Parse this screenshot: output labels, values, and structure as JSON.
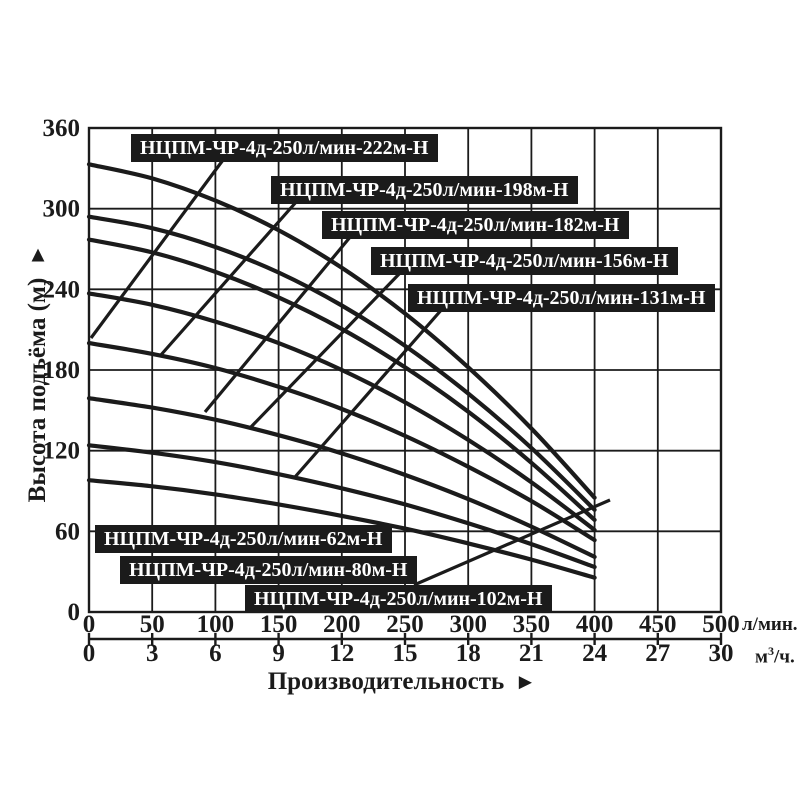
{
  "chart_data": {
    "type": "line",
    "x_label": "Производительность",
    "arrow_right": "►",
    "arrow_up": "▲",
    "y_axis": {
      "label": "Высота подъёма (м)",
      "ticks": [
        0,
        60,
        120,
        180,
        240,
        300,
        360
      ],
      "min": 0,
      "max": 360,
      "grid": true
    },
    "x_axis_primary": {
      "unit": "л/мин.",
      "ticks": [
        0,
        50,
        100,
        150,
        200,
        250,
        300,
        350,
        400,
        450,
        500
      ],
      "min": 0,
      "max": 500,
      "grid": true
    },
    "x_axis_secondary": {
      "unit_pre": "м",
      "unit_sup": "3",
      "unit_post": "/ч.",
      "ticks": [
        0,
        3,
        6,
        9,
        12,
        15,
        18,
        21,
        24,
        27,
        30
      ],
      "min": 0,
      "max": 30
    },
    "flow_samples_lmin": [
      0,
      50,
      100,
      150,
      200,
      250,
      300,
      350,
      400
    ],
    "series": [
      {
        "name": "НЦПМ-ЧР-4д-250л/мин-222м-Н",
        "rated_head_m": 222,
        "values": [
          333,
          322.5,
          306,
          284,
          256,
          222,
          182,
          136.5,
          85
        ]
      },
      {
        "name": "НЦПМ-ЧР-4д-250л/мин-198м-Н",
        "rated_head_m": 198,
        "values": [
          294,
          285.5,
          271.5,
          252.5,
          228,
          198,
          162.5,
          122,
          76
        ]
      },
      {
        "name": "НЦПМ-ЧР-4д-250л/мин-182м-Н",
        "rated_head_m": 182,
        "values": [
          277,
          267.5,
          253,
          234,
          210.5,
          182,
          149,
          111,
          68.5
        ]
      },
      {
        "name": "НЦПМ-ЧР-4д-250л/мин-156м-Н",
        "rated_head_m": 156,
        "values": [
          237,
          228.5,
          216,
          200,
          180,
          156,
          128,
          96.5,
          61
        ]
      },
      {
        "name": "НЦПМ-ЧР-4д-250л/мин-131м-Н",
        "rated_head_m": 131,
        "values": [
          200,
          192,
          181.5,
          167.5,
          151,
          131,
          108,
          82.5,
          53.5
        ]
      },
      {
        "name": "НЦПМ-ЧР-4д-250л/мин-102м-Н",
        "rated_head_m": 102,
        "values": [
          159,
          152,
          143,
          131.5,
          118,
          102,
          84,
          63.5,
          41
        ]
      },
      {
        "name": "НЦПМ-ЧР-4д-250л/мин-80м-Н",
        "rated_head_m": 80,
        "values": [
          124,
          118.5,
          111.5,
          102.5,
          92,
          80,
          66,
          50.5,
          33.5
        ]
      },
      {
        "name": "НЦПМ-ЧР-4д-250л/мин-62м-Н",
        "rated_head_m": 62,
        "values": [
          98,
          93.5,
          87.5,
          80,
          71.5,
          62,
          51,
          39,
          25.5
        ]
      }
    ],
    "line_color": "#1b1b1b",
    "grid_color": "#1b1b1b",
    "label_bg_color": "#1b1b1b",
    "label_text_color": "#ffffff",
    "legend_position": "labels-on-chart"
  }
}
